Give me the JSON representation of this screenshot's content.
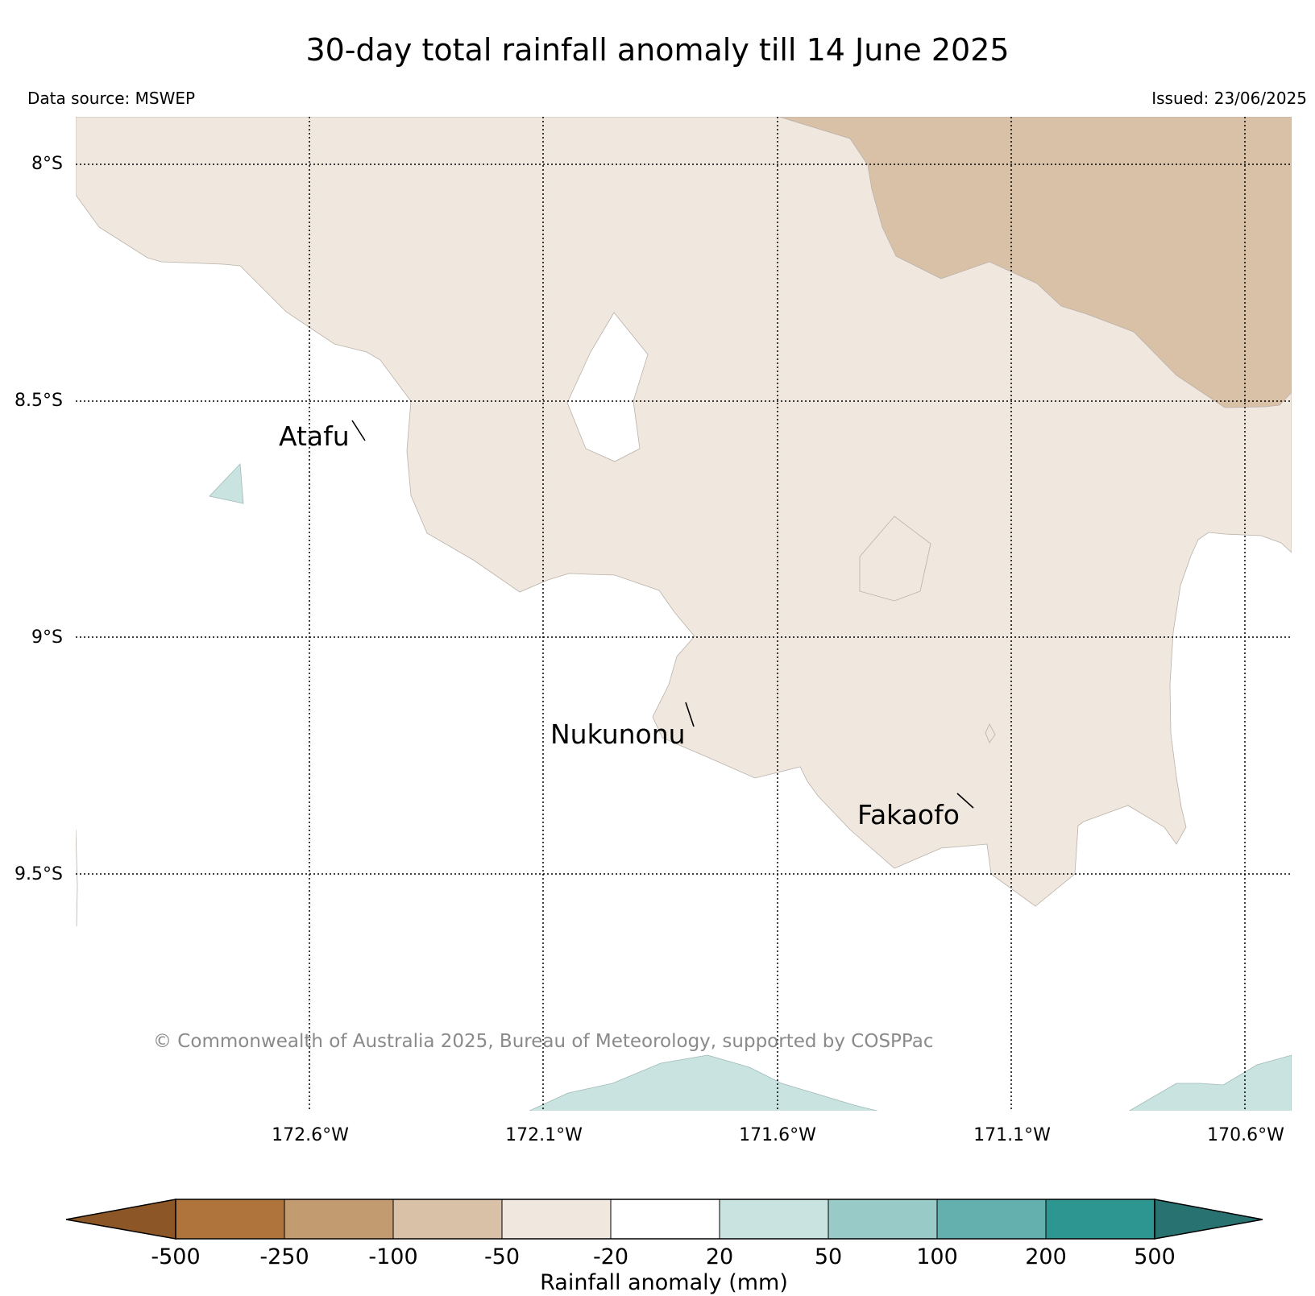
{
  "title": "30-day total rainfall anomaly till 14 June 2025",
  "data_source": "Data source: MSWEP",
  "issued": "Issued: 23/06/2025",
  "copyright": "© Commonwealth of Australia 2025, Bureau of Meteorology, supported by COSPPac",
  "map": {
    "lat_labels": [
      "8°S",
      "8.5°S",
      "9°S",
      "9.5°S"
    ],
    "lon_labels": [
      "172.6°W",
      "172.1°W",
      "171.6°W",
      "171.1°W",
      "170.6°W"
    ],
    "places": [
      "Atafu",
      "Nukunonu",
      "Fakaofo"
    ],
    "grid": "dotted",
    "fill_colors": {
      "minus100_to_minus50": "#d9c1a8",
      "minus50_to_minus20": "#f0e7de",
      "minus20_to_20": "#ffffff",
      "20_to_50": "#c9e3e1"
    }
  },
  "colorbar": {
    "title": "Rainfall anomaly (mm)",
    "ticks": [
      "-500",
      "-250",
      "-100",
      "-50",
      "-20",
      "20",
      "50",
      "100",
      "200",
      "500"
    ],
    "colors": [
      "#8c5626",
      "#ae743b",
      "#c39b71",
      "#d9c1a8",
      "#f0e7de",
      "#ffffff",
      "#c9e3e1",
      "#98cac7",
      "#64b0ae",
      "#2e9691",
      "#287271"
    ],
    "extend": "both"
  }
}
